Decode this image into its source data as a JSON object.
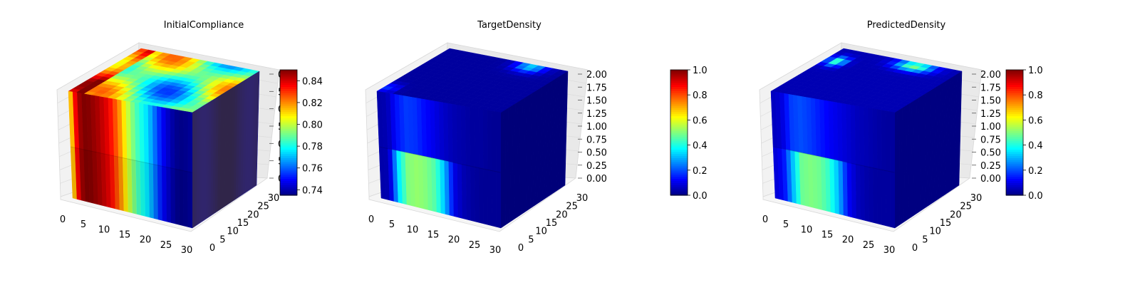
{
  "colormap": "jet",
  "chart_data": [
    {
      "type": "heatmap",
      "title": "InitialCompliance",
      "x_ticks": [
        "0",
        "5",
        "10",
        "15",
        "20",
        "25",
        "30"
      ],
      "y_ticks": [
        "0",
        "5",
        "10",
        "15",
        "20",
        "25",
        "30"
      ],
      "z_ticks": [
        "0",
        "5",
        "0",
        "5",
        "0",
        "5",
        "0"
      ],
      "colorbar": {
        "min": 0.735,
        "max": 0.85,
        "ticks": [
          "0.74",
          "0.76",
          "0.78",
          "0.80",
          "0.82",
          "0.84"
        ]
      },
      "front_profile": [
        0.8,
        0.83,
        0.845,
        0.85,
        0.85,
        0.848,
        0.846,
        0.843,
        0.84,
        0.835,
        0.828,
        0.82,
        0.81,
        0.8,
        0.792,
        0.785,
        0.78,
        0.775,
        0.768,
        0.76,
        0.752,
        0.746,
        0.742,
        0.738,
        0.736,
        0.736,
        0.737,
        0.738
      ],
      "right_face_mean": 0.738,
      "top_face": "mixed 0.76-0.84"
    },
    {
      "type": "heatmap",
      "title": "TargetDensity",
      "x_ticks": [
        "0",
        "5",
        "10",
        "15",
        "20",
        "25",
        "30"
      ],
      "y_ticks": [
        "0",
        "5",
        "10",
        "15",
        "20",
        "25",
        "30"
      ],
      "z_ticks": [
        "0.00",
        "0.25",
        "0.50",
        "0.75",
        "1.00",
        "1.25",
        "1.50",
        "1.75",
        "2.00"
      ],
      "colorbar": {
        "min": 0.0,
        "max": 1.0,
        "ticks": [
          "0.0",
          "0.2",
          "0.4",
          "0.6",
          "0.8",
          "1.0"
        ]
      },
      "front_upper_profile": [
        0.04,
        0.05,
        0.14,
        0.18,
        0.17,
        0.13,
        0.1,
        0.07,
        0.05,
        0.04,
        0.03,
        0.03,
        0.02,
        0.02
      ],
      "front_lower_profile": [
        0.04,
        0.05,
        0.35,
        0.5,
        0.52,
        0.5,
        0.45,
        0.3,
        0.1,
        0.05,
        0.03,
        0.02,
        0.02,
        0.02
      ],
      "right_face_mean": 0.02,
      "top_face": "mostly 0.02, hotspot near 0.3 at back"
    },
    {
      "type": "heatmap",
      "title": "PredictedDensity",
      "x_ticks": [
        "0",
        "5",
        "10",
        "15",
        "20",
        "25",
        "30"
      ],
      "y_ticks": [
        "0",
        "5",
        "10",
        "15",
        "20",
        "25",
        "30"
      ],
      "z_ticks": [
        "0.00",
        "0.25",
        "0.50",
        "0.75",
        "1.00",
        "1.25",
        "1.50",
        "1.75",
        "2.00"
      ],
      "colorbar": {
        "min": 0.0,
        "max": 1.0,
        "ticks": [
          "0.0",
          "0.2",
          "0.4",
          "0.6",
          "0.8",
          "1.0"
        ]
      },
      "front_upper_profile": [
        0.06,
        0.08,
        0.18,
        0.2,
        0.18,
        0.15,
        0.12,
        0.1,
        0.08,
        0.06,
        0.05,
        0.04,
        0.03,
        0.03
      ],
      "front_lower_profile": [
        0.08,
        0.12,
        0.3,
        0.48,
        0.5,
        0.48,
        0.42,
        0.3,
        0.12,
        0.06,
        0.04,
        0.03,
        0.03,
        0.03
      ],
      "right_face_mean": 0.03,
      "top_face": "mostly 0.05, hotspots near 0.5 at back"
    }
  ]
}
